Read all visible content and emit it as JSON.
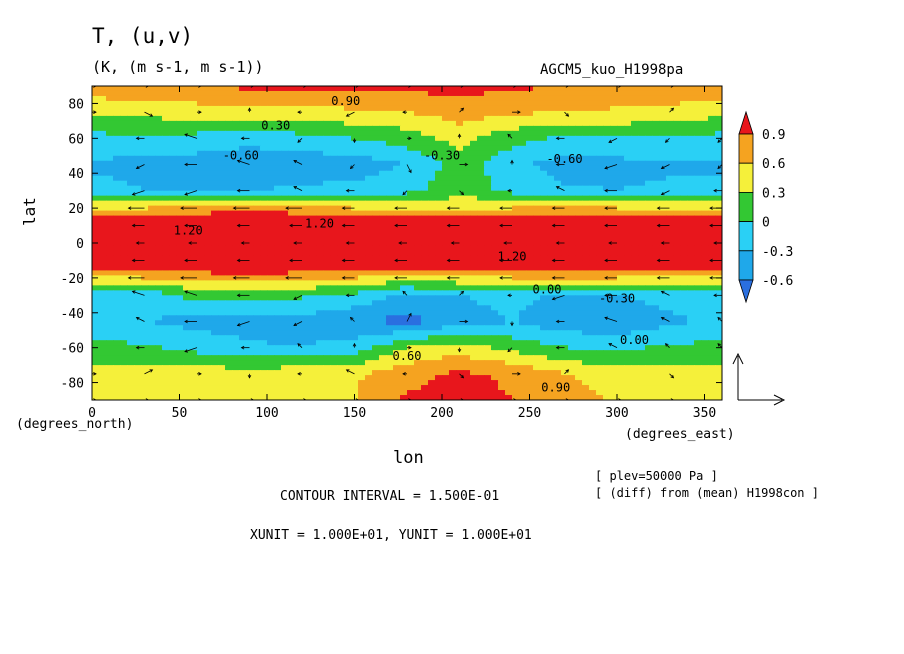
{
  "header": {
    "title": "T, (u,v)",
    "subtitle": "(K, (m s-1, m s-1))",
    "run": "AGCM5_kuo_H1998pa"
  },
  "axes": {
    "xlabel": "lon",
    "ylabel": "lat",
    "x_units": "(degrees_east)",
    "y_units": "(degrees_north)"
  },
  "footer": {
    "plev": "[ plev=50000 Pa ]",
    "diff": "[ (diff) from (mean) H1998con ]",
    "contour_interval": "CONTOUR INTERVAL = 1.500E-01",
    "units": "XUNIT = 1.000E+01, YUNIT = 1.000E+01"
  },
  "colors": {
    "c_lt_neg06": "#2a6fe0",
    "c_neg06_neg03": "#1fa8ea",
    "c_neg03_0": "#2ad0f5",
    "c_0_03": "#33c833",
    "c_03_06": "#f5f03a",
    "c_06_09": "#f5a320",
    "c_gt_09": "#e8161c"
  },
  "chart_data": {
    "type": "heatmap",
    "x": [
      0,
      30,
      60,
      90,
      120,
      150,
      180,
      210,
      240,
      270,
      300,
      330,
      360
    ],
    "y": [
      -90,
      -75,
      -60,
      -45,
      -30,
      -20,
      -10,
      0,
      10,
      20,
      30,
      45,
      60,
      75,
      90
    ],
    "z": [
      [
        0.45,
        0.45,
        0.5,
        0.5,
        0.55,
        0.6,
        0.95,
        1.0,
        0.9,
        0.75,
        0.55,
        0.5,
        0.45
      ],
      [
        0.4,
        0.4,
        0.45,
        0.45,
        0.5,
        0.55,
        0.8,
        0.95,
        0.85,
        0.6,
        0.45,
        0.4,
        0.4
      ],
      [
        0.1,
        0.05,
        -0.1,
        -0.25,
        -0.3,
        -0.15,
        0.3,
        0.45,
        0.2,
        0.0,
        -0.05,
        0.05,
        0.1
      ],
      [
        -0.25,
        -0.3,
        -0.4,
        -0.45,
        -0.4,
        -0.55,
        -0.7,
        -0.45,
        -0.3,
        -0.5,
        -0.55,
        -0.35,
        -0.25
      ],
      [
        -0.15,
        -0.2,
        0.1,
        0.1,
        0.05,
        -0.1,
        -0.4,
        -0.3,
        -0.2,
        -0.35,
        -0.3,
        -0.2,
        -0.15
      ],
      [
        0.5,
        0.6,
        0.7,
        0.75,
        0.7,
        0.6,
        0.5,
        0.55,
        0.6,
        0.65,
        0.6,
        0.55,
        0.5
      ],
      [
        1.2,
        1.3,
        1.35,
        1.4,
        1.35,
        1.3,
        1.25,
        1.3,
        1.35,
        1.3,
        1.25,
        1.2,
        1.2
      ],
      [
        1.3,
        1.4,
        1.45,
        1.5,
        1.45,
        1.4,
        1.5,
        1.45,
        1.4,
        1.35,
        1.3,
        1.3,
        1.3
      ],
      [
        1.2,
        1.3,
        1.35,
        1.4,
        1.35,
        1.3,
        1.25,
        1.3,
        1.35,
        1.3,
        1.25,
        1.2,
        1.2
      ],
      [
        0.5,
        0.6,
        0.7,
        0.75,
        0.7,
        0.6,
        0.5,
        0.55,
        0.6,
        0.65,
        0.6,
        0.55,
        0.5
      ],
      [
        -0.2,
        -0.3,
        -0.35,
        -0.3,
        -0.25,
        -0.2,
        -0.1,
        0.2,
        -0.1,
        -0.25,
        -0.3,
        -0.25,
        -0.2
      ],
      [
        -0.35,
        -0.4,
        -0.45,
        -0.5,
        -0.5,
        -0.45,
        -0.3,
        0.15,
        -0.2,
        -0.45,
        -0.4,
        -0.35,
        -0.35
      ],
      [
        -0.1,
        -0.05,
        -0.1,
        -0.2,
        -0.1,
        0.0,
        0.15,
        0.4,
        0.1,
        -0.05,
        0.0,
        -0.05,
        -0.1
      ],
      [
        0.35,
        0.4,
        0.45,
        0.5,
        0.5,
        0.55,
        0.6,
        0.75,
        0.65,
        0.6,
        0.55,
        0.5,
        0.4
      ],
      [
        0.8,
        0.85,
        0.9,
        0.95,
        0.95,
        0.95,
        1.0,
        1.0,
        0.95,
        0.9,
        0.85,
        0.85,
        0.8
      ]
    ],
    "levels": [
      -0.6,
      -0.3,
      0,
      0.3,
      0.6,
      0.9
    ],
    "contour_interval": 0.15,
    "xlim": [
      0,
      360
    ],
    "ylim": [
      -90,
      90
    ],
    "xticks": [
      0,
      50,
      100,
      150,
      200,
      250,
      300,
      350
    ],
    "yticks": [
      -80,
      -60,
      -40,
      -20,
      0,
      20,
      40,
      60,
      80
    ],
    "colorbar_labels": [
      "0.9",
      "0.6",
      "0.3",
      "0",
      "-0.3",
      "-0.6"
    ],
    "contour_labels": [
      {
        "lon": 105,
        "lat": 67,
        "text": "0.30"
      },
      {
        "lon": 85,
        "lat": 50,
        "text": "-0.60"
      },
      {
        "lon": 200,
        "lat": 50,
        "text": "-0.30"
      },
      {
        "lon": 270,
        "lat": 48,
        "text": "-0.60"
      },
      {
        "lon": 130,
        "lat": 11,
        "text": "1.20"
      },
      {
        "lon": 55,
        "lat": 7,
        "text": "1.20"
      },
      {
        "lon": 240,
        "lat": -8,
        "text": "1.20"
      },
      {
        "lon": 260,
        "lat": -27,
        "text": "0.00"
      },
      {
        "lon": 300,
        "lat": -32,
        "text": "-0.30"
      },
      {
        "lon": 310,
        "lat": -56,
        "text": "0.00"
      },
      {
        "lon": 180,
        "lat": -65,
        "text": "0.60"
      },
      {
        "lon": 265,
        "lat": -83,
        "text": "0.90"
      },
      {
        "lon": 145,
        "lat": 81,
        "text": "0.90"
      }
    ],
    "wind_vectors": {
      "u": [
        [
          1,
          1,
          1,
          1,
          1,
          1,
          1,
          1,
          1,
          1,
          1,
          1,
          1
        ],
        [
          1,
          2,
          1,
          0,
          -1,
          -2,
          -1,
          1,
          2,
          1,
          0,
          1,
          1
        ],
        [
          -1,
          -2,
          -3,
          -2,
          -1,
          0,
          1,
          0,
          -1,
          -2,
          -2,
          -1,
          -1
        ],
        [
          -1,
          -2,
          -3,
          -3,
          -2,
          -1,
          1,
          2,
          0,
          -2,
          -3,
          -2,
          -1
        ],
        [
          -2,
          -3,
          -3,
          -3,
          -2,
          -2,
          -1,
          1,
          -1,
          -3,
          -3,
          -2,
          -2
        ],
        [
          -3,
          -4,
          -4,
          -4,
          -4,
          -3,
          -3,
          -3,
          -3,
          -3,
          -3,
          -3,
          -3
        ],
        [
          -3,
          -3,
          -3,
          -3,
          -3,
          -3,
          -3,
          -3,
          -3,
          -3,
          -3,
          -3,
          -3
        ],
        [
          -2,
          -2,
          -2,
          -2,
          -2,
          -2,
          -2,
          -2,
          -2,
          -2,
          -2,
          -2,
          -2
        ],
        [
          -3,
          -3,
          -3,
          -3,
          -3,
          -3,
          -3,
          -3,
          -3,
          -3,
          -3,
          -3,
          -3
        ],
        [
          -3,
          -4,
          -4,
          -4,
          -4,
          -3,
          -3,
          -3,
          -3,
          -3,
          -3,
          -3,
          -3
        ],
        [
          -2,
          -3,
          -3,
          -3,
          -2,
          -2,
          -1,
          1,
          -1,
          -2,
          -3,
          -2,
          -2
        ],
        [
          -1,
          -2,
          -3,
          -3,
          -2,
          -1,
          1,
          2,
          0,
          -2,
          -3,
          -2,
          -1
        ],
        [
          -1,
          -2,
          -3,
          -2,
          -1,
          0,
          1,
          0,
          -1,
          -2,
          -2,
          -1,
          -1
        ],
        [
          1,
          2,
          1,
          0,
          -1,
          -2,
          -1,
          1,
          2,
          1,
          0,
          1,
          1
        ],
        [
          1,
          1,
          1,
          1,
          1,
          1,
          1,
          1,
          1,
          1,
          1,
          1,
          1
        ]
      ],
      "v": [
        [
          0,
          0,
          0,
          0,
          0,
          0,
          0,
          0,
          0,
          0,
          0,
          0,
          0
        ],
        [
          0,
          1,
          0,
          -1,
          0,
          1,
          0,
          -1,
          0,
          1,
          0,
          -1,
          0
        ],
        [
          1,
          0,
          -1,
          0,
          1,
          1,
          0,
          -1,
          -1,
          0,
          1,
          1,
          1
        ],
        [
          1,
          1,
          0,
          -1,
          -1,
          1,
          2,
          0,
          -1,
          0,
          1,
          1,
          1
        ],
        [
          0,
          1,
          1,
          0,
          -1,
          0,
          1,
          1,
          0,
          -1,
          0,
          1,
          0
        ],
        [
          0,
          0,
          0,
          0,
          0,
          0,
          0,
          0,
          0,
          0,
          0,
          0,
          0
        ],
        [
          0,
          0,
          0,
          0,
          0,
          0,
          0,
          0,
          0,
          0,
          0,
          0,
          0
        ],
        [
          0,
          0,
          0,
          0,
          0,
          0,
          0,
          0,
          0,
          0,
          0,
          0,
          0
        ],
        [
          0,
          0,
          0,
          0,
          0,
          0,
          0,
          0,
          0,
          0,
          0,
          0,
          0
        ],
        [
          0,
          0,
          0,
          0,
          0,
          0,
          0,
          0,
          0,
          0,
          0,
          0,
          0
        ],
        [
          0,
          -1,
          -1,
          0,
          1,
          0,
          -1,
          -1,
          0,
          1,
          0,
          -1,
          0
        ],
        [
          -1,
          -1,
          0,
          1,
          1,
          -1,
          -2,
          0,
          1,
          0,
          -1,
          -1,
          -1
        ],
        [
          -1,
          0,
          1,
          0,
          -1,
          -1,
          0,
          1,
          1,
          0,
          -1,
          -1,
          -1
        ],
        [
          0,
          -1,
          0,
          1,
          0,
          -1,
          0,
          1,
          0,
          -1,
          0,
          1,
          0
        ],
        [
          0,
          0,
          0,
          0,
          0,
          0,
          0,
          0,
          0,
          0,
          0,
          0,
          0
        ]
      ]
    }
  }
}
